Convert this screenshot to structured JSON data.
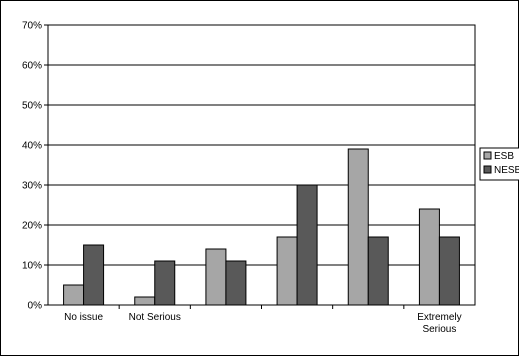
{
  "chart_data": {
    "type": "bar",
    "categories": [
      [
        "No issue"
      ],
      [
        "Not Serious"
      ],
      [
        ""
      ],
      [
        ""
      ],
      [
        ""
      ],
      [
        "Extremely",
        "Serious"
      ]
    ],
    "series": [
      {
        "name": "ESB",
        "values": [
          5,
          2,
          14,
          17,
          39,
          24
        ],
        "color": "#a6a6a6"
      },
      {
        "name": "NESB",
        "values": [
          15,
          11,
          11,
          30,
          17,
          17
        ],
        "color": "#595959"
      }
    ],
    "y_ticks": [
      "0%",
      "10%",
      "20%",
      "30%",
      "40%",
      "50%",
      "60%",
      "70%"
    ],
    "ylim": [
      0,
      70
    ],
    "grid": true,
    "legend_position": "right"
  }
}
